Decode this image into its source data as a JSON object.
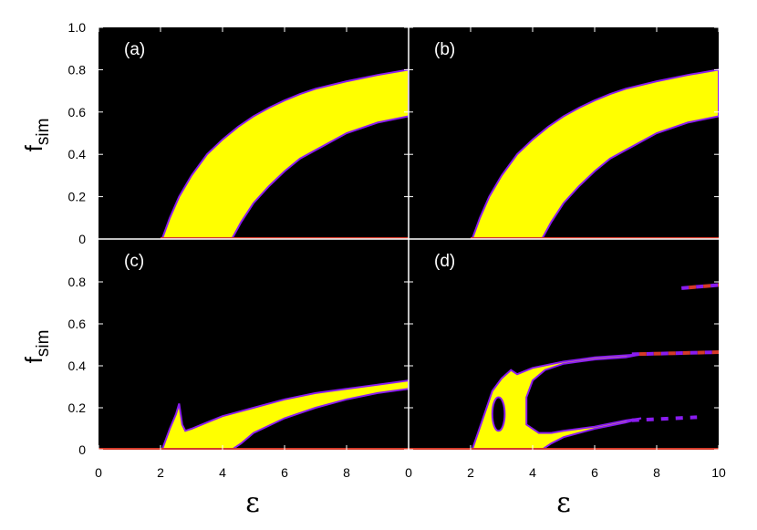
{
  "chart_data": {
    "type": "heatmap",
    "layout": "2x2 panels sharing axes",
    "xlabel": "ε",
    "ylabel": {
      "base": "f",
      "sub": "sim"
    },
    "xlim": [
      0,
      10
    ],
    "ylim": [
      0,
      1.0
    ],
    "x_tick_labels_bottom_left": [
      "0",
      "2",
      "4",
      "6",
      "8",
      "0"
    ],
    "x_tick_labels_bottom_right": [
      "2",
      "4",
      "6",
      "8",
      "10"
    ],
    "y_tick_labels_top": [
      "1.0",
      "0.8",
      "0.6",
      "0.4",
      "0.2",
      "0"
    ],
    "y_tick_labels_bottom": [
      "0.8",
      "0.6",
      "0.4",
      "0.2",
      "0"
    ],
    "colors": {
      "background": "#000000",
      "region": "#ffff00",
      "edge_purple": "#8a1cf0",
      "edge_red": "#d43a2a",
      "axis_white": "#ffffff"
    },
    "panels": [
      {
        "label": "(a)",
        "position": "top-left",
        "upper_boundary": {
          "x": [
            2.05,
            2.3,
            2.6,
            3.0,
            3.5,
            4.0,
            4.5,
            5.0,
            5.5,
            6.0,
            6.5,
            7.0,
            8.0,
            9.0,
            10.0
          ],
          "y": [
            0.0,
            0.1,
            0.2,
            0.3,
            0.4,
            0.47,
            0.53,
            0.58,
            0.62,
            0.655,
            0.685,
            0.71,
            0.745,
            0.775,
            0.8
          ]
        },
        "lower_boundary": {
          "x": [
            4.3,
            4.6,
            5.0,
            5.5,
            6.0,
            6.5,
            7.0,
            8.0,
            9.0,
            10.0
          ],
          "y": [
            0.0,
            0.08,
            0.17,
            0.25,
            0.32,
            0.38,
            0.42,
            0.5,
            0.55,
            0.58
          ]
        },
        "baseline": {
          "y": 0,
          "xmin": 2.0,
          "xmax": 10.0
        }
      },
      {
        "label": "(b)",
        "position": "top-right",
        "upper_boundary": {
          "x": [
            2.05,
            2.3,
            2.6,
            3.0,
            3.5,
            4.0,
            4.5,
            5.0,
            5.5,
            6.0,
            6.5,
            7.0,
            8.0,
            9.0,
            10.0
          ],
          "y": [
            0.0,
            0.1,
            0.2,
            0.3,
            0.4,
            0.47,
            0.53,
            0.58,
            0.62,
            0.655,
            0.685,
            0.71,
            0.745,
            0.775,
            0.8
          ]
        },
        "lower_boundary": {
          "x": [
            4.3,
            4.6,
            5.0,
            5.5,
            6.0,
            6.5,
            7.0,
            8.0,
            9.0,
            10.0
          ],
          "y": [
            0.0,
            0.08,
            0.17,
            0.25,
            0.32,
            0.38,
            0.42,
            0.5,
            0.55,
            0.58
          ]
        },
        "baseline": {
          "y": 0,
          "xmin": 2.0,
          "xmax": 10.0
        }
      },
      {
        "label": "(c)",
        "position": "bottom-left",
        "region_outline": {
          "x": [
            2.05,
            2.3,
            2.5,
            2.6,
            2.7,
            2.8,
            3.0,
            3.5,
            4.0,
            5.0,
            6.0,
            7.0,
            8.0,
            9.0,
            10.0,
            10.0,
            9.0,
            8.0,
            7.0,
            6.0,
            5.0,
            4.6,
            4.3,
            3.5,
            3.0,
            2.8,
            2.05
          ],
          "y": [
            0.0,
            0.1,
            0.17,
            0.22,
            0.12,
            0.09,
            0.1,
            0.13,
            0.16,
            0.2,
            0.24,
            0.27,
            0.29,
            0.31,
            0.33,
            0.29,
            0.27,
            0.24,
            0.2,
            0.15,
            0.08,
            0.03,
            0.0,
            0.0,
            0.0,
            0.0,
            0.0
          ]
        },
        "baseline": {
          "y": 0,
          "xmin": 0.0,
          "xmax": 10.0
        }
      },
      {
        "label": "(d)",
        "position": "bottom-right",
        "main_region": {
          "x": [
            2.05,
            2.4,
            2.7,
            3.0,
            3.3,
            3.5,
            4.0,
            5.0,
            6.0,
            7.0,
            7.5,
            7.0,
            6.0,
            5.0,
            4.4,
            4.0,
            3.8,
            3.8,
            4.2,
            4.6,
            5.0,
            6.0,
            7.0,
            7.5,
            7.0,
            6.0,
            5.0,
            4.6,
            4.3,
            2.05
          ],
          "y": [
            0.0,
            0.15,
            0.28,
            0.34,
            0.38,
            0.36,
            0.39,
            0.42,
            0.44,
            0.45,
            0.455,
            0.44,
            0.43,
            0.41,
            0.38,
            0.33,
            0.25,
            0.12,
            0.08,
            0.08,
            0.09,
            0.11,
            0.14,
            0.15,
            0.13,
            0.1,
            0.06,
            0.03,
            0.0,
            0.0
          ]
        },
        "hole": {
          "cx": 2.9,
          "cy": 0.17,
          "rx": 0.2,
          "ry": 0.08
        },
        "dashed_branches": [
          {
            "y": [
              0.455,
              0.465
            ],
            "x": [
              7.2,
              10.0
            ],
            "color": "mixed red/purple"
          },
          {
            "y": [
              0.14,
              0.155
            ],
            "x": [
              7.2,
              9.3
            ],
            "color": "purple"
          },
          {
            "y": [
              0.77,
              0.785
            ],
            "x": [
              8.8,
              10.0
            ],
            "color": "mixed red/purple"
          }
        ],
        "baseline": {
          "y": 0,
          "xmin": 0.0,
          "xmax": 10.0
        }
      }
    ]
  }
}
